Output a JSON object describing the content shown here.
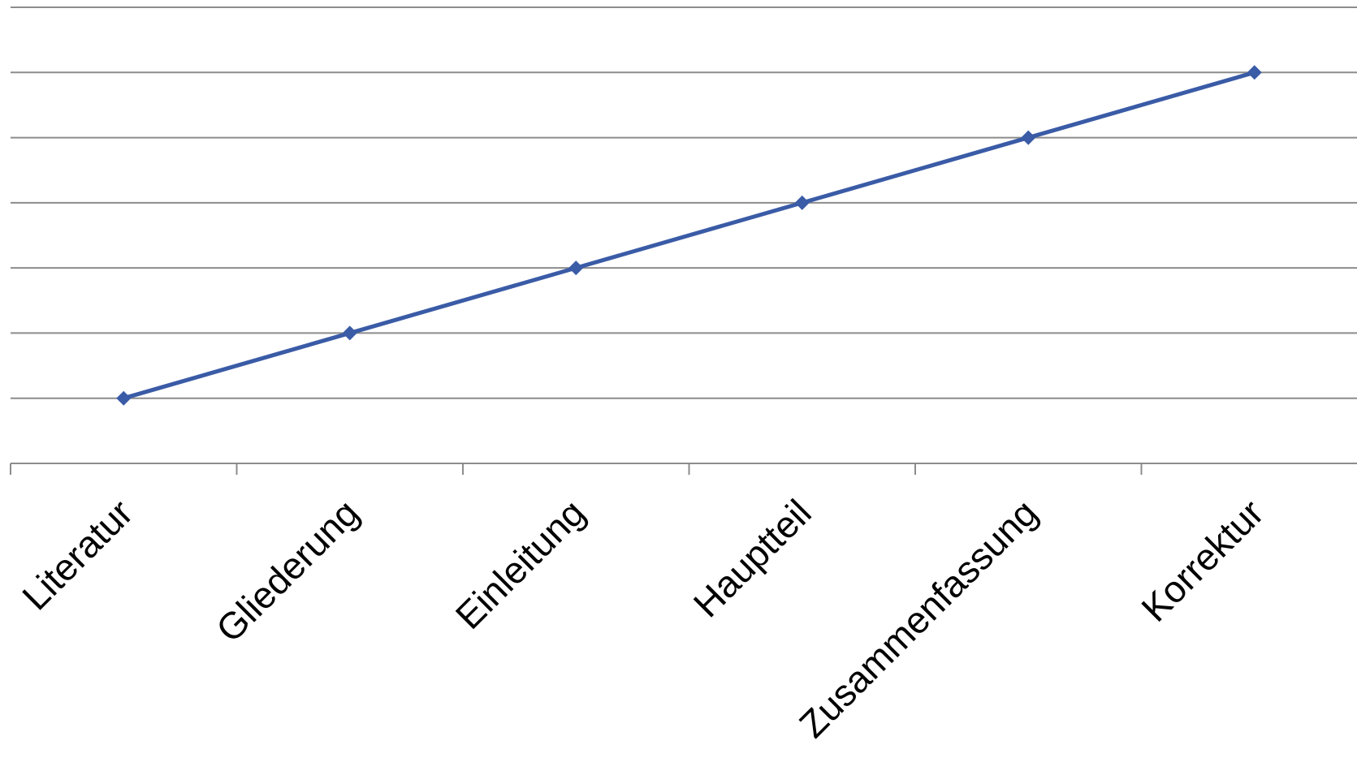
{
  "chart_data": {
    "type": "line",
    "categories": [
      "Literatur",
      "Gliederung",
      "Einleitung",
      "Hauptteil",
      "Zusammenfassung",
      "Korrektur"
    ],
    "series": [
      {
        "values": [
          1,
          2,
          3,
          4,
          5,
          6
        ]
      }
    ],
    "ylim": [
      0,
      7
    ],
    "grid": true,
    "legend": "none",
    "colors": {
      "series": "#3A5BA6",
      "grid": "#8C8C8C",
      "axis": "#8C8C8C",
      "text": "#000000"
    },
    "marker": "diamond-icon"
  }
}
